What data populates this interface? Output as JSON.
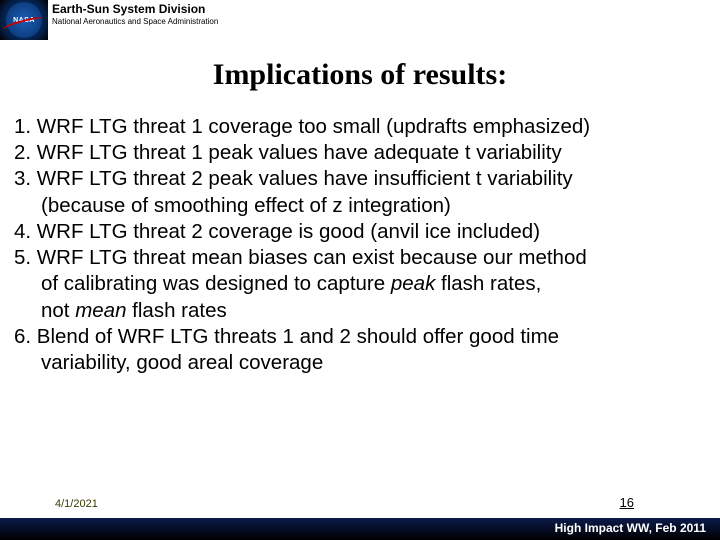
{
  "header": {
    "logo_text": "NASA",
    "division": "Earth-Sun System Division",
    "agency": "National Aeronautics and Space Administration"
  },
  "title": "Implications of results:",
  "items": [
    {
      "n": "1.",
      "lines": [
        "WRF LTG threat 1 coverage too small (updrafts emphasized)"
      ]
    },
    {
      "n": "2.",
      "lines": [
        "WRF LTG threat 1 peak values have adequate t variability"
      ]
    },
    {
      "n": "3.",
      "lines": [
        "WRF LTG threat 2 peak values have insufficient t variability",
        "(because of smoothing effect of z integration)"
      ]
    },
    {
      "n": "4.",
      "lines": [
        "WRF LTG threat 2 coverage is good (anvil ice included)"
      ]
    },
    {
      "n": "5.",
      "lines_html": [
        "WRF LTG threat mean biases can exist because our method",
        "of calibrating was designed to capture <em>peak</em> flash rates,",
        "not <em>mean</em> flash rates"
      ]
    },
    {
      "n": "6.",
      "lines": [
        "Blend of WRF LTG threats 1 and 2 should offer good time",
        "variability, good areal coverage"
      ]
    }
  ],
  "footer": {
    "date": "4/1/2021",
    "page": "16",
    "event": "High Impact WW, Feb 2011"
  },
  "colors": {
    "header_strip_bg": "#ffffff",
    "bar_gradient_top": "#0b1a4a",
    "bar_gradient_bottom": "#000000"
  }
}
